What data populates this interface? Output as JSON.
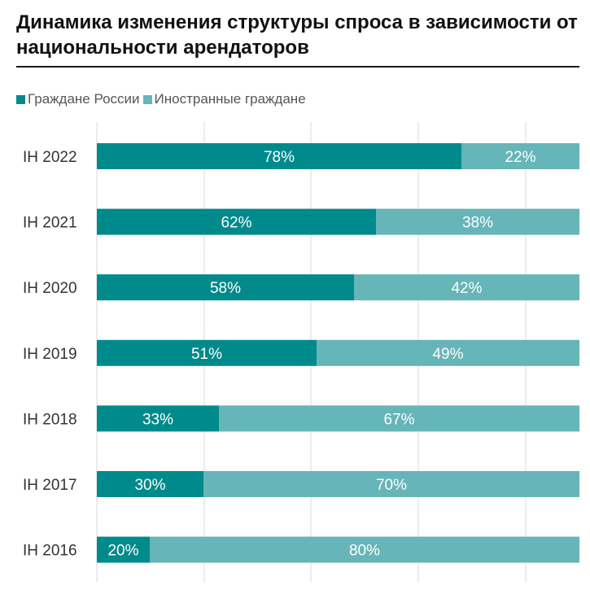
{
  "colors": {
    "russian": "#008a8c",
    "foreign": "#66b5b8",
    "grid": "#d8d8d8",
    "rule": "#1a1a1a"
  },
  "chart_data": {
    "type": "bar",
    "orientation": "horizontal",
    "stacked": true,
    "percent_stacked": true,
    "title": "Динамика изменения структуры спроса в зависимости от национальности арендаторов",
    "legend_position": "top-left",
    "categories": [
      "IH 2022",
      "IH 2021",
      "IH 2020",
      "IH 2019",
      "IH 2018",
      "IH 2017",
      "IH 2016"
    ],
    "series": [
      {
        "name": "Граждане России",
        "values": [
          78,
          62,
          58,
          51,
          33,
          30,
          20
        ],
        "labels": [
          "78%",
          "62%",
          "58%",
          "51%",
          "33%",
          "30%",
          "20%"
        ]
      },
      {
        "name": "Иностранные граждане",
        "values": [
          22,
          38,
          42,
          49,
          67,
          70,
          80
        ],
        "labels": [
          "22%",
          "38%",
          "42%",
          "49%",
          "67%",
          "70%",
          "80%"
        ]
      }
    ],
    "xlim": [
      0,
      100
    ],
    "grid": true
  }
}
